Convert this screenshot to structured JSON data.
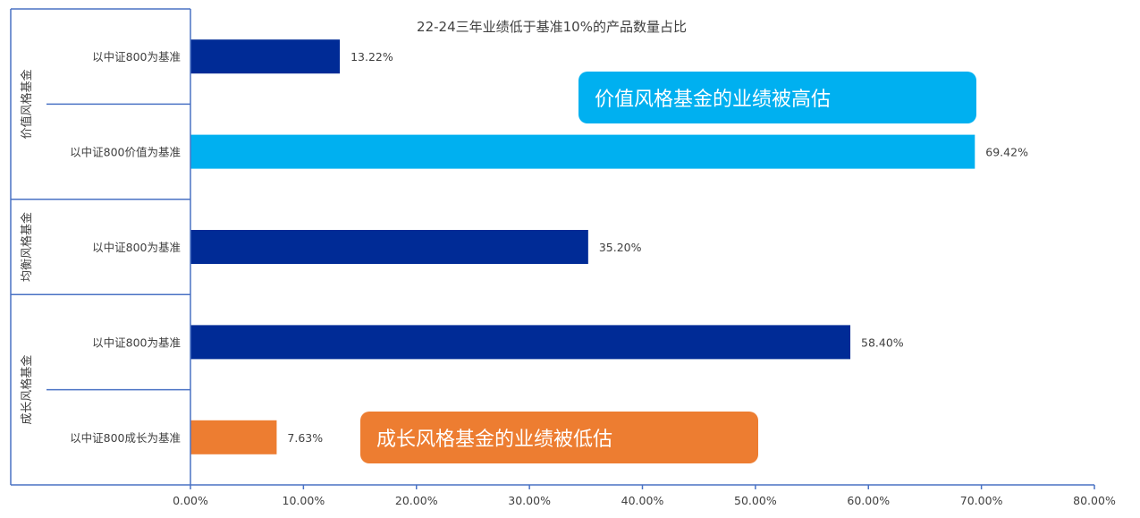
{
  "chart_data": {
    "type": "bar",
    "orientation": "horizontal",
    "title": "22-24三年业绩低于基准10%的产品数量占比",
    "groups": [
      {
        "label": "价值风格基金",
        "items": [
          {
            "label": "以中证800为基准",
            "value": 13.22,
            "value_label": "13.22%",
            "color": "#002b96"
          },
          {
            "label": "以中证800价值为基准",
            "value": 69.42,
            "value_label": "69.42%",
            "color": "#00b0f0"
          }
        ]
      },
      {
        "label": "均衡风格基金",
        "items": [
          {
            "label": "以中证800为基准",
            "value": 35.2,
            "value_label": "35.20%",
            "color": "#002b96"
          }
        ]
      },
      {
        "label": "成长风格基金",
        "items": [
          {
            "label": "以中证800为基准",
            "value": 58.4,
            "value_label": "58.40%",
            "color": "#002b96"
          },
          {
            "label": "以中证800成长为基准",
            "value": 7.63,
            "value_label": "7.63%",
            "color": "#ed7d31"
          }
        ]
      }
    ],
    "xlim": [
      0,
      80
    ],
    "xticks": [
      "0.00%",
      "10.00%",
      "20.00%",
      "30.00%",
      "40.00%",
      "50.00%",
      "60.00%",
      "70.00%",
      "80.00%"
    ],
    "grid": false,
    "legend": "none"
  },
  "callouts": {
    "value": {
      "text": "价值风格基金的业绩被高估",
      "color": "#00b0f0"
    },
    "growth": {
      "text": "成长风格基金的业绩被低估",
      "color": "#ed7d31"
    }
  }
}
